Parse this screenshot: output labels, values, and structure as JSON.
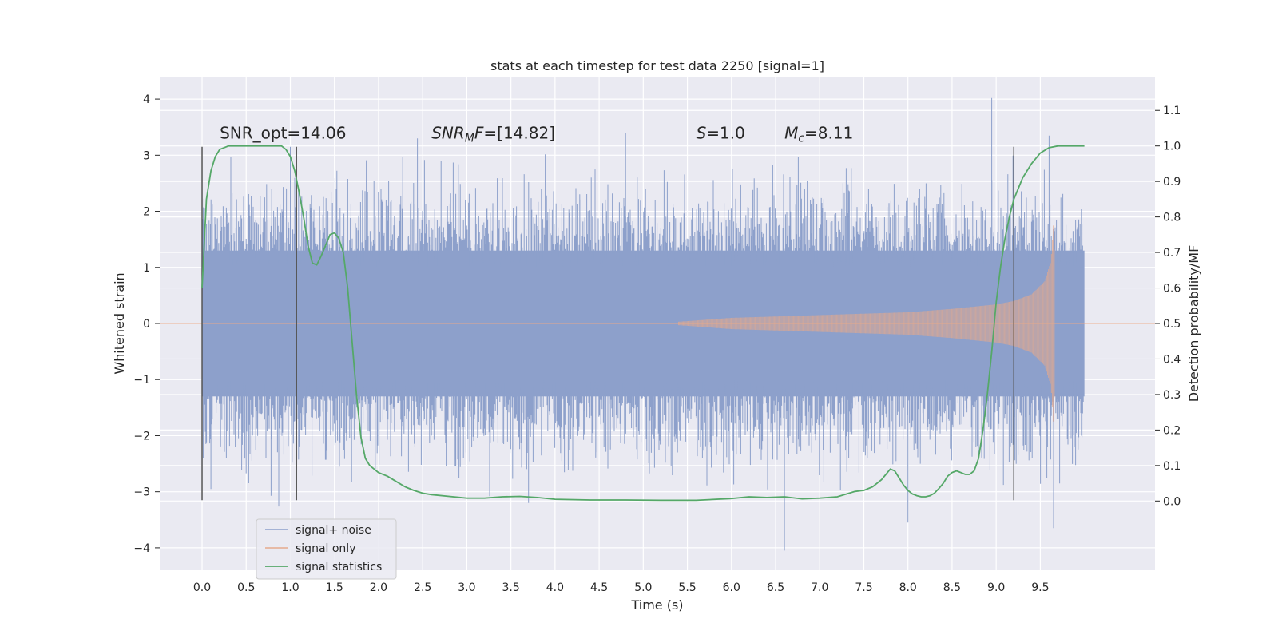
{
  "chart_data": {
    "type": "line",
    "title": "stats at each timestep for test data 2250 [signal=1]",
    "xlabel": "Time (s)",
    "ylabel": "Whitened strain",
    "y2label": "Detection probability/MF",
    "xlim": [
      -0.48,
      10.8
    ],
    "ylim": [
      -4.4,
      4.4
    ],
    "y2lim": [
      -0.195,
      1.195
    ],
    "xticks": [
      "0.0",
      "0.5",
      "1.0",
      "1.5",
      "2.0",
      "2.5",
      "3.0",
      "3.5",
      "4.0",
      "4.5",
      "5.0",
      "5.5",
      "6.0",
      "6.5",
      "7.0",
      "7.5",
      "8.0",
      "8.5",
      "9.0",
      "9.5"
    ],
    "yticks": [
      "4",
      "3",
      "2",
      "1",
      "0",
      "−1",
      "−2",
      "−3",
      "−4"
    ],
    "y2ticks": [
      "1.1",
      "1.0",
      "0.9",
      "0.8",
      "0.7",
      "0.6",
      "0.5",
      "0.4",
      "0.3",
      "0.2",
      "0.1",
      "0.0"
    ],
    "grid": true,
    "legend_position": "lower-left",
    "annotations": [
      {
        "x": 0.2,
        "y": 3.3,
        "text": "SNR_opt=14.06",
        "parts": [
          {
            "t": "SNR_opt=14.06"
          }
        ]
      },
      {
        "x": 2.6,
        "y": 3.3,
        "text": "SNR_MF=[14.82]",
        "parts": [
          {
            "t": "SNR",
            "i": true
          },
          {
            "t": "M",
            "i": true,
            "sub": true
          },
          {
            "t": "F",
            "i": true
          },
          {
            "t": "=[14.82]"
          }
        ]
      },
      {
        "x": 5.6,
        "y": 3.3,
        "text": "S=1.0",
        "parts": [
          {
            "t": "S",
            "i": true
          },
          {
            "t": "=1.0"
          }
        ]
      },
      {
        "x": 6.6,
        "y": 3.3,
        "text": "M_c=8.11",
        "parts": [
          {
            "t": "M",
            "i": true
          },
          {
            "t": "c",
            "i": true,
            "sub": true
          },
          {
            "t": "=8.11"
          }
        ]
      }
    ],
    "vertical_markers": [
      0.0,
      1.07,
      9.2
    ],
    "vertical_marker_range": [
      -3.15,
      3.15
    ],
    "series": [
      {
        "name": "signal+ noise",
        "color": "#8da0cb",
        "kind": "noise",
        "t_range": [
          0.0,
          10.0
        ],
        "envelope_approx": [
          -4.1,
          4.05
        ],
        "notable_spikes": [
          {
            "t": 8.95,
            "v": 4.02
          },
          {
            "t": 6.6,
            "v": -4.05
          },
          {
            "t": 9.65,
            "v": -3.65
          },
          {
            "t": 8.0,
            "v": -3.55
          },
          {
            "t": 4.8,
            "v": 3.4
          },
          {
            "t": 9.6,
            "v": 3.35
          },
          {
            "t": 1.0,
            "v": 3.15
          },
          {
            "t": 0.1,
            "v": -2.95
          },
          {
            "t": 3.7,
            "v": -3.2
          }
        ]
      },
      {
        "name": "signal only",
        "color": "#e5a98c",
        "kind": "chirp",
        "t_start": 5.4,
        "t_merger": 9.65,
        "amplitude_points": [
          [
            5.4,
            0.03
          ],
          [
            6.0,
            0.1
          ],
          [
            7.0,
            0.15
          ],
          [
            8.0,
            0.2
          ],
          [
            8.5,
            0.26
          ],
          [
            9.0,
            0.34
          ],
          [
            9.2,
            0.4
          ],
          [
            9.4,
            0.52
          ],
          [
            9.55,
            0.75
          ],
          [
            9.62,
            1.1
          ],
          [
            9.65,
            1.8
          ],
          [
            9.68,
            0.1
          ]
        ]
      },
      {
        "name": "signal statistics",
        "color": "#55a868",
        "axis": "right",
        "x": [
          0.0,
          0.05,
          0.1,
          0.15,
          0.2,
          0.3,
          0.4,
          0.5,
          0.6,
          0.7,
          0.8,
          0.9,
          0.95,
          1.0,
          1.05,
          1.1,
          1.15,
          1.2,
          1.25,
          1.3,
          1.35,
          1.4,
          1.45,
          1.5,
          1.55,
          1.6,
          1.65,
          1.7,
          1.75,
          1.8,
          1.85,
          1.9,
          1.95,
          2.0,
          2.1,
          2.2,
          2.3,
          2.4,
          2.5,
          2.6,
          2.8,
          3.0,
          3.2,
          3.4,
          3.6,
          3.8,
          4.0,
          4.4,
          4.8,
          5.2,
          5.6,
          6.0,
          6.2,
          6.4,
          6.6,
          6.8,
          7.0,
          7.2,
          7.4,
          7.5,
          7.6,
          7.7,
          7.75,
          7.8,
          7.85,
          7.9,
          7.95,
          8.0,
          8.05,
          8.1,
          8.15,
          8.2,
          8.25,
          8.3,
          8.35,
          8.4,
          8.45,
          8.5,
          8.55,
          8.6,
          8.65,
          8.7,
          8.75,
          8.8,
          8.85,
          8.9,
          8.95,
          9.0,
          9.05,
          9.1,
          9.15,
          9.2,
          9.25,
          9.3,
          9.4,
          9.5,
          9.6,
          9.7,
          9.8,
          9.9,
          10.0
        ],
        "values": [
          0.6,
          0.85,
          0.93,
          0.97,
          0.99,
          1.0,
          1.0,
          1.0,
          1.0,
          1.0,
          1.0,
          1.0,
          0.99,
          0.97,
          0.93,
          0.87,
          0.8,
          0.72,
          0.67,
          0.665,
          0.69,
          0.72,
          0.75,
          0.755,
          0.74,
          0.7,
          0.6,
          0.45,
          0.3,
          0.18,
          0.12,
          0.1,
          0.09,
          0.08,
          0.07,
          0.055,
          0.04,
          0.03,
          0.022,
          0.018,
          0.013,
          0.008,
          0.008,
          0.012,
          0.013,
          0.01,
          0.005,
          0.003,
          0.003,
          0.002,
          0.002,
          0.007,
          0.012,
          0.01,
          0.012,
          0.006,
          0.008,
          0.012,
          0.027,
          0.03,
          0.04,
          0.06,
          0.075,
          0.09,
          0.085,
          0.065,
          0.045,
          0.03,
          0.02,
          0.015,
          0.012,
          0.012,
          0.015,
          0.022,
          0.035,
          0.05,
          0.07,
          0.08,
          0.085,
          0.08,
          0.075,
          0.075,
          0.085,
          0.12,
          0.2,
          0.3,
          0.42,
          0.56,
          0.66,
          0.74,
          0.8,
          0.85,
          0.88,
          0.91,
          0.95,
          0.98,
          0.995,
          1.0,
          1.0,
          1.0,
          1.0
        ]
      }
    ]
  }
}
